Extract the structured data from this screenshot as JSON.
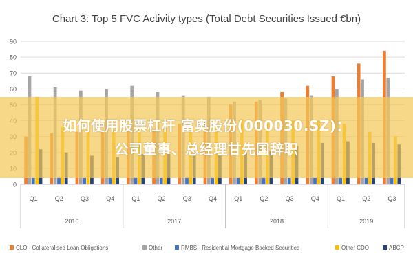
{
  "chart_data": {
    "type": "bar",
    "title": "Chart 3: Top 5 FVC Activity types (Total Debt Securities Issued €bn)",
    "ylim": [
      0,
      90
    ],
    "yticks": [
      0,
      10,
      20,
      30,
      40,
      50,
      60,
      70,
      80,
      90
    ],
    "grid": true,
    "legend_position": "bottom",
    "categories": [
      "Q1",
      "Q2",
      "Q3",
      "Q4",
      "Q1",
      "Q2",
      "Q3",
      "Q4",
      "Q1",
      "Q2",
      "Q3",
      "Q4",
      "Q1",
      "Q2",
      "Q3"
    ],
    "groups": [
      {
        "label": "2016",
        "count": 4
      },
      {
        "label": "2017",
        "count": 4
      },
      {
        "label": "2018",
        "count": 4
      },
      {
        "label": "2019",
        "count": 3
      }
    ],
    "series": [
      {
        "name": "CLO - Collateralised Loan Obligations",
        "color": "#ed7d31",
        "values": [
          30,
          32,
          33,
          33,
          35,
          35,
          38,
          40,
          50,
          52,
          58,
          62,
          68,
          76,
          84
        ]
      },
      {
        "name": "Other",
        "color": "#a5a5a5",
        "values": [
          68,
          61,
          59,
          60,
          62,
          58,
          56,
          55,
          52,
          53,
          54,
          56,
          60,
          66,
          67
        ]
      },
      {
        "name": "RMBS - Residential Mortgage Backed Securities",
        "color": "#4472c4",
        "values": [
          4,
          4,
          4,
          4,
          4,
          4,
          4,
          4,
          4,
          4,
          4,
          4,
          4,
          4,
          4
        ]
      },
      {
        "name": "Other CDO",
        "color": "#ffc000",
        "values": [
          55,
          36,
          34,
          34,
          38,
          36,
          35,
          35,
          41,
          38,
          40,
          40,
          38,
          33,
          30
        ]
      },
      {
        "name": "ABCP",
        "color": "#264478",
        "values": [
          22,
          20,
          18,
          17,
          19,
          19,
          18,
          18,
          20,
          21,
          24,
          26,
          27,
          26,
          25
        ]
      }
    ]
  },
  "overlay": {
    "line1": "如何使用股票杠杆 富奥股份(000030.SZ)：",
    "line2": "公司董事、总经理甘先国辞职"
  }
}
